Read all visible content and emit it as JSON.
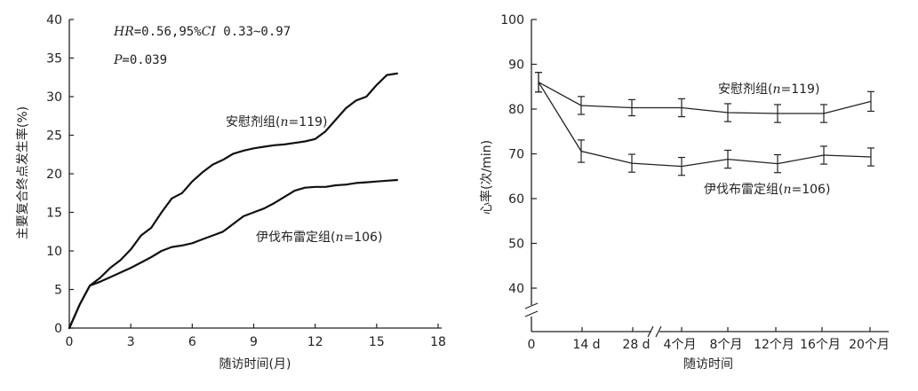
{
  "chart_data": [
    {
      "type": "line",
      "ylabel": "主要复合终点发生率(%)",
      "xlabel": "随访时间(月)",
      "xlim": [
        0,
        18
      ],
      "ylim": [
        0,
        40
      ],
      "x_ticks": [
        "0",
        "3",
        "6",
        "9",
        "12",
        "15",
        "18"
      ],
      "y_ticks": [
        "0",
        "5",
        "10",
        "15",
        "20",
        "25",
        "30",
        "35",
        "40"
      ],
      "stats": {
        "hr_prefix": "HR",
        "hr_value": "=0.56,95%",
        "ci_label": "CI",
        "ci_value": " 0.33~0.97",
        "p_prefix": "P",
        "p_value": "=0.039"
      },
      "series": [
        {
          "name": "安慰剂组(n=119)",
          "label_main": "安慰剂组(",
          "label_n": "n",
          "label_rest": "=119)",
          "x": [
            0,
            0.5,
            1.0,
            1.5,
            2.0,
            2.5,
            3.0,
            3.5,
            4.0,
            4.5,
            5.0,
            5.5,
            6.0,
            6.5,
            7.0,
            7.5,
            8.0,
            8.5,
            9.0,
            9.5,
            10.0,
            10.5,
            11.0,
            11.5,
            12.0,
            12.5,
            13.0,
            13.5,
            14.0,
            14.5,
            15.0,
            15.5,
            16.0
          ],
          "y": [
            0,
            3.0,
            5.5,
            6.5,
            7.8,
            8.8,
            10.2,
            12.0,
            13.0,
            15.0,
            16.8,
            17.5,
            19.0,
            20.2,
            21.2,
            21.8,
            22.6,
            23.0,
            23.3,
            23.5,
            23.7,
            23.8,
            24.0,
            24.2,
            24.5,
            25.5,
            27.0,
            28.5,
            29.5,
            30.0,
            31.5,
            32.8,
            33.0
          ]
        },
        {
          "name": "伊伐布雷定组(n=106)",
          "label_main": "伊伐布雷定组(",
          "label_n": "n",
          "label_rest": "=106)",
          "x": [
            0,
            0.5,
            1.0,
            1.5,
            2.0,
            2.5,
            3.0,
            3.5,
            4.0,
            4.5,
            5.0,
            5.5,
            6.0,
            6.5,
            7.0,
            7.5,
            8.0,
            8.5,
            9.0,
            9.5,
            10.0,
            10.5,
            11.0,
            11.5,
            12.0,
            12.5,
            13.0,
            13.5,
            14.0,
            14.5,
            15.0,
            15.5,
            16.0
          ],
          "y": [
            0,
            3.0,
            5.5,
            6.0,
            6.6,
            7.2,
            7.8,
            8.5,
            9.2,
            10.0,
            10.5,
            10.7,
            11.0,
            11.5,
            12.0,
            12.5,
            13.5,
            14.5,
            15.0,
            15.5,
            16.2,
            17.0,
            17.8,
            18.2,
            18.3,
            18.3,
            18.5,
            18.6,
            18.8,
            18.9,
            19.0,
            19.1,
            19.2
          ]
        }
      ]
    },
    {
      "type": "line",
      "ylabel": "心率(次/min)",
      "xlabel": "随访时间",
      "categories": [
        "0",
        "14 d",
        "28 d",
        "4个月",
        "8个月",
        "12个月",
        "16个月",
        "20个月"
      ],
      "ylim": [
        40,
        100
      ],
      "y_ticks": [
        "40",
        "50",
        "60",
        "70",
        "80",
        "90",
        "100"
      ],
      "axis_break": true,
      "series": [
        {
          "name": "安慰剂组(n=119)",
          "label_main": "安慰剂组(",
          "label_n": "n",
          "label_rest": "=119)",
          "values": [
            86.0,
            80.8,
            80.3,
            80.3,
            79.2,
            79.0,
            79.0,
            81.7
          ],
          "error": [
            2.2,
            2.0,
            1.8,
            2.0,
            2.0,
            2.0,
            2.0,
            2.2
          ]
        },
        {
          "name": "伊伐布雷定组(n=106)",
          "label_main": "伊伐布雷定组(",
          "label_n": "n",
          "label_rest": "=106)",
          "values": [
            86.0,
            70.6,
            67.9,
            67.2,
            68.8,
            67.8,
            69.7,
            69.3
          ],
          "error": [
            2.2,
            2.5,
            2.0,
            2.0,
            2.0,
            2.0,
            2.0,
            2.0
          ]
        }
      ]
    }
  ]
}
